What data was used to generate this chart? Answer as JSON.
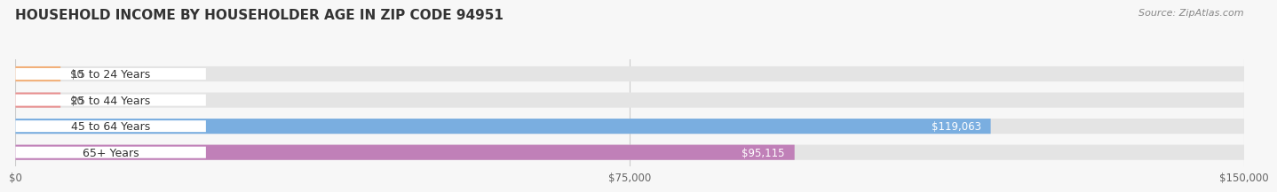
{
  "title": "HOUSEHOLD INCOME BY HOUSEHOLDER AGE IN ZIP CODE 94951",
  "source": "Source: ZipAtlas.com",
  "categories": [
    "15 to 24 Years",
    "25 to 44 Years",
    "45 to 64 Years",
    "65+ Years"
  ],
  "values": [
    0,
    0,
    119063,
    95115
  ],
  "bar_colors": [
    "#f2b07a",
    "#e89090",
    "#7aaee0",
    "#c080b8"
  ],
  "value_labels": [
    "$0",
    "$0",
    "$119,063",
    "$95,115"
  ],
  "xlim": [
    0,
    150000
  ],
  "xticks": [
    0,
    75000,
    150000
  ],
  "xtick_labels": [
    "$0",
    "$75,000",
    "$150,000"
  ],
  "background_color": "#f7f7f7",
  "bar_bg_color": "#e4e4e4",
  "label_bg_color": "#ffffff",
  "title_fontsize": 11,
  "source_fontsize": 8,
  "label_fontsize": 9,
  "value_fontsize": 8.5,
  "zero_bar_width": 5500
}
